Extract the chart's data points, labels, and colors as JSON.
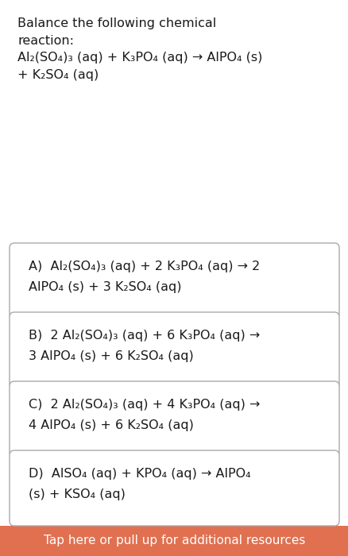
{
  "bg_color": "#ffffff",
  "footer_color": "#e07050",
  "footer_text": "Tap here or pull up for additional resources",
  "footer_text_color": "#ffffff",
  "question_lines": [
    "Balance the following chemical",
    "reaction:",
    "Al₂(SO₄)₃ (aq) + K₃PO₄ (aq) → AlPO₄ (s)",
    "+ K₂SO₄ (aq)"
  ],
  "options": [
    {
      "line1": "A)  Al₂(SO₄)₃ (aq) + 2 K₃PO₄ (aq) → 2",
      "line2": "AlPO₄ (s) + 3 K₂SO₄ (aq)"
    },
    {
      "line1": "B)  2 Al₂(SO₄)₃ (aq) + 6 K₃PO₄ (aq) →",
      "line2": "3 AlPO₄ (s) + 6 K₂SO₄ (aq)"
    },
    {
      "line1": "C)  2 Al₂(SO₄)₃ (aq) + 4 K₃PO₄ (aq) →",
      "line2": "4 AlPO₄ (s) + 6 K₂SO₄ (aq)"
    },
    {
      "line1": "D)  AlSO₄ (aq) + KPO₄ (aq) → AlPO₄",
      "line2": "(s) + KSO₄ (aq)"
    }
  ],
  "font_size_question": 11.5,
  "font_size_options": 11.5,
  "font_size_footer": 11.0,
  "text_color": "#1a1a1a",
  "box_edge_color": "#aaaaaa",
  "figsize": [
    4.39,
    7.0
  ],
  "dpi": 100
}
